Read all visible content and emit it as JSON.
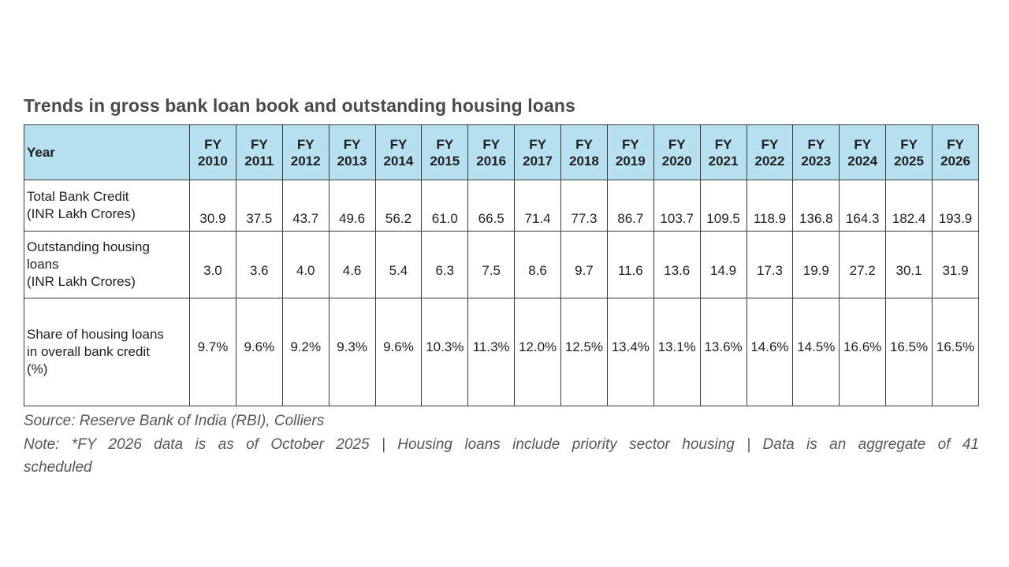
{
  "title": "Trends in gross bank loan book and outstanding housing loans",
  "table": {
    "year_header": "Year",
    "columns": [
      "FY\n2010",
      "FY\n2011",
      "FY\n2012",
      "FY\n2013",
      "FY\n2014",
      "FY\n2015",
      "FY\n2016",
      "FY\n2017",
      "FY\n2018",
      "FY\n2019",
      "FY\n2020",
      "FY\n2021",
      "FY\n2022",
      "FY\n2023",
      "FY\n2024",
      "FY\n2025",
      "FY\n2026"
    ],
    "rows": [
      {
        "label": "Total Bank Credit\n(INR Lakh Crores)",
        "values": [
          "30.9",
          "37.5",
          "43.7",
          "49.6",
          "56.2",
          "61.0",
          "66.5",
          "71.4",
          "77.3",
          "86.7",
          "103.7",
          "109.5",
          "118.9",
          "136.8",
          "164.3",
          "182.4",
          "193.9"
        ]
      },
      {
        "label": "Outstanding housing\nloans\n(INR Lakh Crores)",
        "values": [
          "3.0",
          "3.6",
          "4.0",
          "4.6",
          "5.4",
          "6.3",
          "7.5",
          "8.6",
          "9.7",
          "11.6",
          "13.6",
          "14.9",
          "17.3",
          "19.9",
          "27.2",
          "30.1",
          "31.9"
        ]
      },
      {
        "label": "Share of housing loans\nin overall bank credit\n(%)",
        "values": [
          "9.7%",
          "9.6%",
          "9.2%",
          "9.3%",
          "9.6%",
          "10.3%",
          "11.3%",
          "12.0%",
          "12.5%",
          "13.4%",
          "13.1%",
          "13.6%",
          "14.6%",
          "14.5%",
          "16.6%",
          "16.5%",
          "16.5%"
        ]
      }
    ]
  },
  "footer": {
    "source": "Source: Reserve Bank of India (RBI), Colliers",
    "note_line1": "Note: *FY 2026 data is as of October 2025 | Housing loans include priority sector housing | Data is an aggregate of 41",
    "note_line2": "scheduled"
  },
  "colors": {
    "header_bg": "#b7e0f0",
    "border": "#3a3a3a",
    "title_text": "#4a4a4a",
    "body_text": "#2e2e2e",
    "footnote_text": "#575757"
  }
}
